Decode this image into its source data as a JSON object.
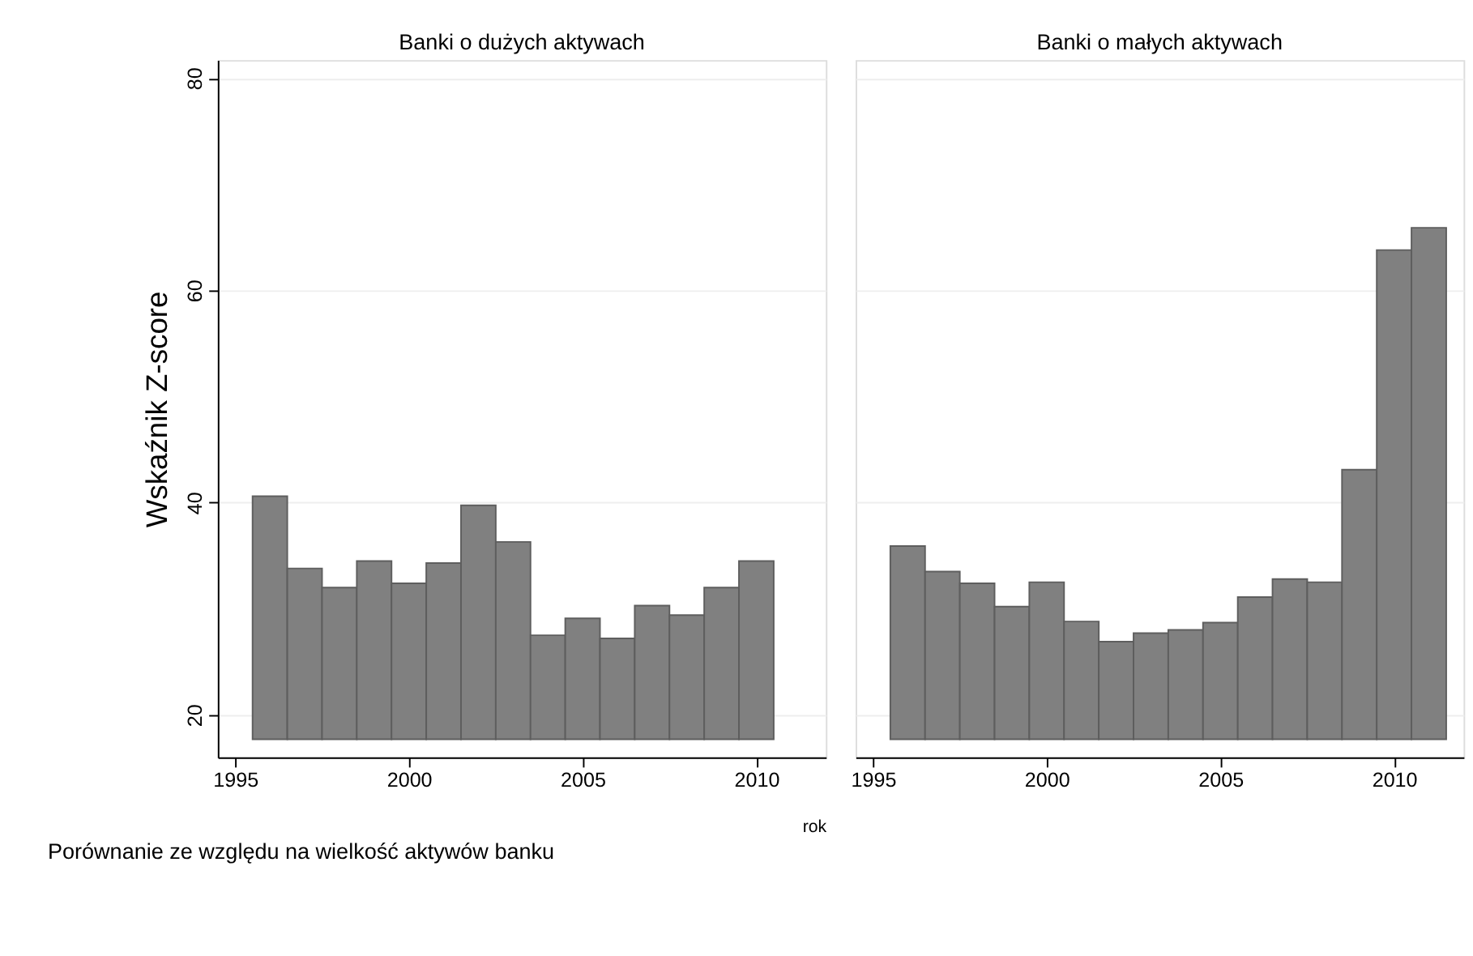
{
  "chart_data": [
    {
      "type": "bar",
      "title": "Banki o dużych aktywach",
      "xlabel": "rok",
      "ylabel": "Wskaźnik Z-score",
      "annotations": [
        "Porównanie ze względu na wielkość aktywów banku"
      ],
      "x": [
        1996,
        1997,
        1998,
        1999,
        2000,
        2001,
        2002,
        2003,
        2004,
        2005,
        2006,
        2007,
        2008,
        2009,
        2010
      ],
      "values": [
        22.9,
        16.1,
        14.3,
        16.8,
        14.7,
        16.6,
        22.05,
        18.6,
        9.8,
        11.4,
        9.5,
        12.6,
        11.7,
        14.3,
        16.8
      ],
      "base": [
        17.7,
        17.7,
        17.7,
        17.7,
        17.7,
        17.7,
        17.7,
        17.7,
        17.7,
        17.7,
        17.7,
        17.7,
        17.7,
        17.7,
        17.7
      ],
      "color": "#808080",
      "xlim": [
        1994.5,
        2012
      ],
      "xticks": [
        1995,
        2000,
        2005,
        2010
      ],
      "ylim": [
        16,
        81.7
      ],
      "yticks": [
        20,
        40,
        60,
        80
      ],
      "grid": "y"
    },
    {
      "type": "bar",
      "title": "Banki o małych aktywach",
      "x": [
        1996,
        1997,
        1998,
        1999,
        2000,
        2001,
        2002,
        2003,
        2004,
        2005,
        2006,
        2007,
        2008,
        2009,
        2010,
        2011
      ],
      "values": [
        18.2,
        15.8,
        14.7,
        12.5,
        14.8,
        11.1,
        9.2,
        10.0,
        10.3,
        11.0,
        13.4,
        15.1,
        14.8,
        25.4,
        46.1,
        48.2
      ],
      "base": [
        17.7,
        17.7,
        17.7,
        17.7,
        17.7,
        17.7,
        17.7,
        17.7,
        17.7,
        17.7,
        17.7,
        17.7,
        17.7,
        17.7,
        17.7,
        17.7
      ],
      "color": "#808080",
      "xlim": [
        1994.5,
        2012
      ],
      "xticks": [
        1995,
        2000,
        2005,
        2010
      ],
      "ylim": [
        16,
        81.7
      ],
      "yticks": [
        20,
        40,
        60,
        80
      ],
      "grid": "y",
      "tick_labels": "x"
    }
  ]
}
